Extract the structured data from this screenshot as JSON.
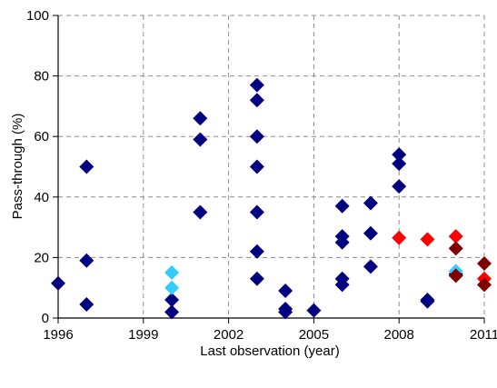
{
  "chart_data": {
    "type": "scatter",
    "title": "",
    "xlabel": "Last observation (year)",
    "ylabel": "Pass-through (%)",
    "xlim": [
      1996,
      2011
    ],
    "ylim": [
      0,
      100
    ],
    "x_ticks": [
      "1996",
      "1999",
      "2002",
      "2005",
      "2008",
      "2011"
    ],
    "y_ticks": [
      "0",
      "20",
      "40",
      "60",
      "80",
      "100"
    ],
    "grid": true,
    "legend": "none",
    "marker": "diamond",
    "series": [
      {
        "color": "#000080",
        "points": [
          [
            1996,
            11.5
          ],
          [
            1997,
            50
          ],
          [
            1997,
            19
          ],
          [
            1997,
            4.5
          ],
          [
            2000,
            6
          ],
          [
            2000,
            2
          ],
          [
            2001,
            66
          ],
          [
            2001,
            59
          ],
          [
            2001,
            35
          ],
          [
            2003,
            77
          ],
          [
            2003,
            72
          ],
          [
            2003,
            60
          ],
          [
            2003,
            50
          ],
          [
            2003,
            35
          ],
          [
            2003,
            22
          ],
          [
            2003,
            13
          ],
          [
            2004,
            9
          ],
          [
            2004,
            3
          ],
          [
            2004,
            2
          ],
          [
            2005,
            2.5
          ],
          [
            2006,
            37
          ],
          [
            2006,
            27
          ],
          [
            2006,
            25
          ],
          [
            2006,
            13
          ],
          [
            2006,
            11
          ],
          [
            2007,
            38
          ],
          [
            2007,
            28
          ],
          [
            2007,
            17
          ],
          [
            2008,
            54
          ],
          [
            2008,
            51
          ],
          [
            2008,
            43.5
          ],
          [
            2009,
            6
          ],
          [
            2009,
            5.5
          ],
          [
            2010,
            14.5
          ]
        ]
      },
      {
        "color": "#33ccff",
        "points": [
          [
            2000,
            15
          ],
          [
            2000,
            10
          ],
          [
            2010,
            15.5
          ]
        ]
      },
      {
        "color": "#ff0000",
        "points": [
          [
            2008,
            26.5
          ],
          [
            2009,
            26
          ],
          [
            2010,
            27
          ],
          [
            2011,
            13
          ]
        ]
      },
      {
        "color": "#800000",
        "points": [
          [
            2010,
            23
          ],
          [
            2010,
            14
          ],
          [
            2011,
            18
          ],
          [
            2011,
            11
          ]
        ]
      }
    ]
  }
}
